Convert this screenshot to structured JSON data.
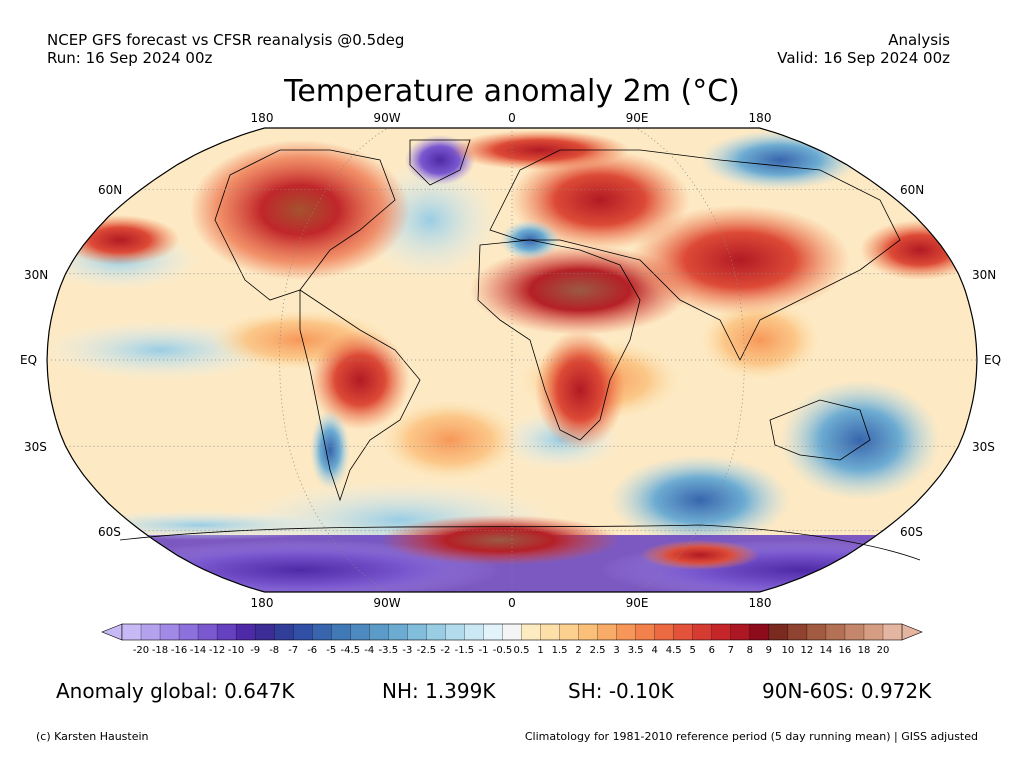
{
  "header": {
    "left_line1": "NCEP GFS forecast vs CFSR reanalysis @0.5deg",
    "left_line2": "Run: 16 Sep 2024 00z",
    "right_line1": "Analysis",
    "right_line2": "Valid: 16 Sep 2024 00z"
  },
  "title": "Temperature anomaly 2m (°C)",
  "map": {
    "lon_labels": [
      "180",
      "90W",
      "0",
      "90E",
      "180"
    ],
    "lat_labels": [
      "60N",
      "30N",
      "EQ",
      "30S",
      "60S"
    ],
    "grid": true
  },
  "colorbar": {
    "labels": [
      "-20",
      "-18",
      "-16",
      "-14",
      "-12",
      "-10",
      "-9",
      "-8",
      "-7",
      "-6",
      "-5",
      "-4.5",
      "-4",
      "-3.5",
      "-3",
      "-2.5",
      "-2",
      "-1.5",
      "-1",
      "-0.5",
      "0.5",
      "1",
      "1.5",
      "2",
      "2.5",
      "3",
      "3.5",
      "4",
      "4.5",
      "5",
      "6",
      "7",
      "8",
      "9",
      "10",
      "12",
      "14",
      "16",
      "18",
      "20"
    ],
    "colors": [
      "#c7b9f6",
      "#b5a2ef",
      "#a18ae6",
      "#8d70dc",
      "#7a58cf",
      "#6540bf",
      "#4f2aa8",
      "#3c2c96",
      "#303e9a",
      "#3150a5",
      "#3865ad",
      "#4178b6",
      "#4d8abf",
      "#5c9bc8",
      "#6dacd2",
      "#82bddb",
      "#99cde4",
      "#b2dcec",
      "#cae9f4",
      "#e2f3f9",
      "#f5f5f5",
      "#fdebc2",
      "#fde0a9",
      "#fcd190",
      "#fbbf7a",
      "#f9ab68",
      "#f69759",
      "#f2814c",
      "#ec6a42",
      "#e3523a",
      "#d63b32",
      "#c4262a",
      "#ad1723",
      "#8e0b1c",
      "#7b2a20",
      "#8f4330",
      "#a25a41",
      "#b47055",
      "#c5876b",
      "#d59e83",
      "#e4b5a0"
    ]
  },
  "stats": {
    "global": "Anomaly global: 0.647K",
    "nh": "NH: 1.399K",
    "sh": "SH: -0.10K",
    "band": "90N-60S: 0.972K"
  },
  "footer": {
    "left": "(c) Karsten Haustein",
    "right": "Climatology for 1981-2010 reference period (5 day running mean) | GISS adjusted"
  }
}
